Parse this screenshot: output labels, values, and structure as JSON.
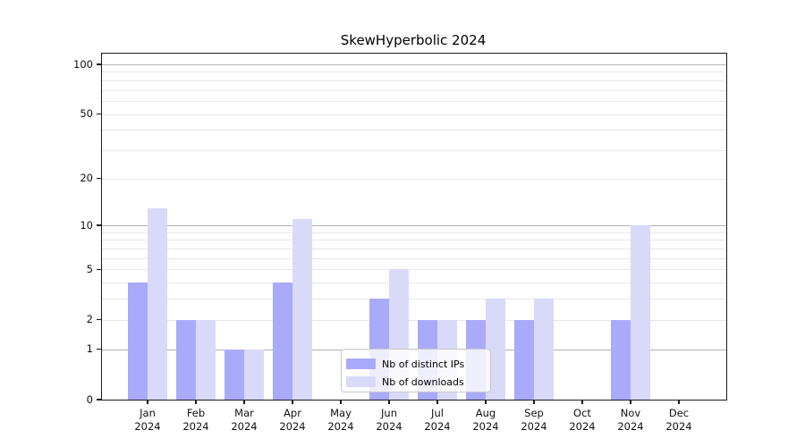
{
  "title": "SkewHyperbolic 2024",
  "chart_data": {
    "type": "bar",
    "title": "SkewHyperbolic 2024",
    "categories": [
      "Jan 2024",
      "Feb 2024",
      "Mar 2024",
      "Apr 2024",
      "May 2024",
      "Jun 2024",
      "Jul 2024",
      "Aug 2024",
      "Sep 2024",
      "Oct 2024",
      "Nov 2024",
      "Dec 2024"
    ],
    "series": [
      {
        "name": "Nb of distinct IPs",
        "color": "#aaaafa",
        "values": [
          4,
          2,
          1,
          4,
          0,
          3,
          2,
          2,
          2,
          0,
          2,
          0
        ]
      },
      {
        "name": "Nb of downloads",
        "color": "#d9d9fa",
        "values": [
          13,
          2,
          1,
          11,
          0,
          5,
          2,
          3,
          3,
          0,
          10,
          0
        ]
      }
    ],
    "xlabel": "",
    "ylabel": "",
    "y_axis": {
      "scale": "log1p",
      "tick_values": [
        0,
        1,
        2,
        5,
        10,
        20,
        50,
        100
      ],
      "tick_labels": [
        "0",
        "1",
        "2",
        "5",
        "10",
        "20",
        "50",
        "100"
      ],
      "major_gridlines": [
        1,
        10,
        100
      ],
      "minor_gridlines": [
        2,
        3,
        4,
        5,
        6,
        7,
        8,
        9,
        20,
        30,
        40,
        50,
        60,
        70,
        80,
        90
      ],
      "ylim": [
        0,
        117
      ]
    },
    "grid": true,
    "legend_position": "lower-center-inside"
  },
  "legend": {
    "items": [
      {
        "label": "Nb of distinct IPs",
        "color": "#aaaafa"
      },
      {
        "label": "Nb of downloads",
        "color": "#d9d9fa"
      }
    ]
  },
  "colors": {
    "bar_distinct_ips": "#aaaafa",
    "bar_downloads": "#d9d9fa",
    "major_gridline": "#b2b2b2",
    "minor_gridline": "#e7e7e7",
    "axis": "#1a1a1a",
    "background": "#ffffff"
  }
}
